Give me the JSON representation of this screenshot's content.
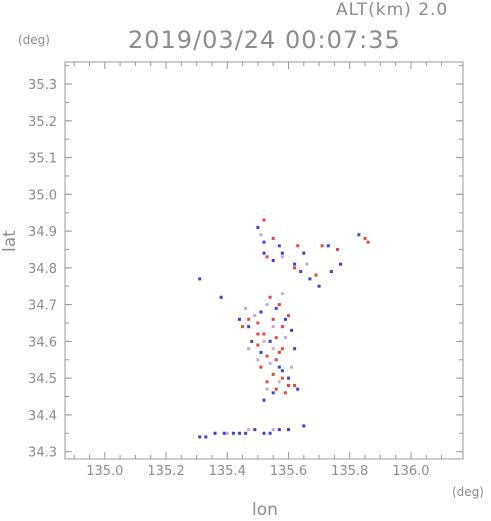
{
  "header": {
    "alt_label": "ALT(km)  2.0",
    "timestamp": "2019/03/24 00:07:35"
  },
  "chart_data": {
    "type": "scatter",
    "title": "2019/03/24 00:07:35",
    "xlabel": "lon",
    "ylabel": "lat",
    "x_unit": "(deg)",
    "y_unit": "(deg)",
    "xlim": [
      134.87,
      136.17
    ],
    "ylim": [
      34.28,
      35.36
    ],
    "xticks": [
      "135.0",
      "135.2",
      "135.4",
      "135.6",
      "135.8",
      "136.0"
    ],
    "yticks": [
      "34.3",
      "34.4",
      "34.5",
      "34.6",
      "34.7",
      "34.8",
      "34.9",
      "35.0",
      "35.1",
      "35.2",
      "35.3"
    ],
    "grid": false,
    "series": [
      {
        "color": "#e8453c",
        "points": [
          [
            135.52,
            34.93
          ],
          [
            135.55,
            34.88
          ],
          [
            135.63,
            34.86
          ],
          [
            135.71,
            34.86
          ],
          [
            135.76,
            34.85
          ],
          [
            135.85,
            34.88
          ],
          [
            135.86,
            34.87
          ],
          [
            135.53,
            34.83
          ],
          [
            135.62,
            34.8
          ],
          [
            135.69,
            34.78
          ],
          [
            135.54,
            34.72
          ],
          [
            135.57,
            34.7
          ],
          [
            135.47,
            34.66
          ],
          [
            135.5,
            34.65
          ],
          [
            135.55,
            34.66
          ],
          [
            135.58,
            34.64
          ],
          [
            135.52,
            34.62
          ],
          [
            135.56,
            34.61
          ],
          [
            135.5,
            34.59
          ],
          [
            135.58,
            34.58
          ],
          [
            135.53,
            34.56
          ],
          [
            135.56,
            34.55
          ],
          [
            135.51,
            34.53
          ],
          [
            135.55,
            34.51
          ],
          [
            135.58,
            34.5
          ],
          [
            135.53,
            34.49
          ],
          [
            135.6,
            34.48
          ],
          [
            135.56,
            34.47
          ],
          [
            135.59,
            34.46
          ],
          [
            135.62,
            34.48
          ],
          [
            135.5,
            34.62
          ],
          [
            135.6,
            34.67
          ],
          [
            135.45,
            34.64
          ],
          [
            135.57,
            34.57
          ]
        ]
      },
      {
        "color": "#3d3de0",
        "points": [
          [
            135.5,
            34.91
          ],
          [
            135.52,
            34.87
          ],
          [
            135.57,
            34.86
          ],
          [
            135.65,
            34.84
          ],
          [
            135.73,
            34.86
          ],
          [
            135.83,
            34.89
          ],
          [
            135.52,
            34.84
          ],
          [
            135.55,
            34.82
          ],
          [
            135.58,
            34.84
          ],
          [
            135.62,
            34.81
          ],
          [
            135.64,
            34.79
          ],
          [
            135.67,
            34.77
          ],
          [
            135.7,
            34.75
          ],
          [
            135.74,
            34.79
          ],
          [
            135.77,
            34.81
          ],
          [
            135.31,
            34.77
          ],
          [
            135.38,
            34.72
          ],
          [
            135.44,
            34.66
          ],
          [
            135.47,
            34.64
          ],
          [
            135.51,
            34.68
          ],
          [
            135.56,
            34.69
          ],
          [
            135.59,
            34.66
          ],
          [
            135.61,
            34.63
          ],
          [
            135.54,
            34.6
          ],
          [
            135.51,
            34.57
          ],
          [
            135.57,
            34.53
          ],
          [
            135.6,
            34.5
          ],
          [
            135.63,
            34.47
          ],
          [
            135.55,
            34.46
          ],
          [
            135.52,
            34.44
          ],
          [
            135.58,
            34.52
          ],
          [
            135.48,
            34.6
          ],
          [
            135.62,
            34.58
          ],
          [
            135.31,
            34.34
          ],
          [
            135.33,
            34.34
          ],
          [
            135.36,
            34.35
          ],
          [
            135.39,
            34.35
          ],
          [
            135.42,
            34.35
          ],
          [
            135.44,
            34.35
          ],
          [
            135.46,
            34.35
          ],
          [
            135.49,
            34.36
          ],
          [
            135.52,
            34.35
          ],
          [
            135.54,
            34.35
          ],
          [
            135.57,
            34.36
          ],
          [
            135.6,
            34.36
          ],
          [
            135.65,
            34.37
          ]
        ]
      },
      {
        "color": "#c9a8d8",
        "points": [
          [
            135.51,
            34.89
          ],
          [
            135.58,
            34.83
          ],
          [
            135.66,
            34.81
          ],
          [
            135.53,
            34.7
          ],
          [
            135.49,
            34.67
          ],
          [
            135.55,
            34.64
          ],
          [
            135.52,
            34.6
          ],
          [
            135.55,
            34.58
          ],
          [
            135.54,
            34.54
          ],
          [
            135.57,
            34.49
          ],
          [
            135.5,
            34.55
          ],
          [
            135.59,
            34.61
          ],
          [
            135.46,
            34.69
          ],
          [
            135.58,
            34.73
          ],
          [
            135.53,
            34.47
          ],
          [
            135.61,
            34.53
          ],
          [
            135.47,
            34.58
          ],
          [
            135.4,
            34.35
          ],
          [
            135.47,
            34.36
          ],
          [
            135.55,
            34.36
          ]
        ]
      }
    ]
  }
}
